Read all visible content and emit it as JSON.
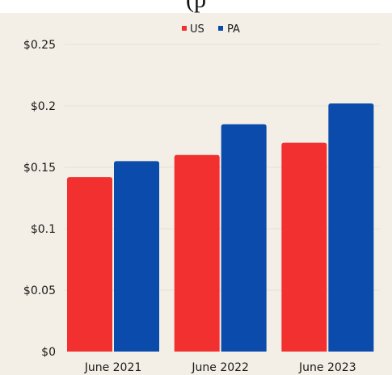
{
  "title_fragment": "(p",
  "colors": {
    "background": "#f3efe6",
    "US": "#f23030",
    "PA": "#0a4bab",
    "grid": "#e7e2d8"
  },
  "chart_data": {
    "type": "bar",
    "title": "",
    "xlabel": "",
    "ylabel": "",
    "categories": [
      "June 2021",
      "June 2022",
      "June 2023"
    ],
    "series": [
      {
        "name": "US",
        "values": [
          0.142,
          0.16,
          0.17
        ]
      },
      {
        "name": "PA",
        "values": [
          0.155,
          0.185,
          0.202
        ]
      }
    ],
    "ylim": [
      0,
      0.25
    ],
    "yticks": [
      0,
      0.05,
      0.1,
      0.15,
      0.2,
      0.25
    ],
    "ytick_labels": [
      "$0",
      "$0.05",
      "$0.1",
      "$0.15",
      "$0.2",
      "$0.25"
    ],
    "legend_position": "top-center",
    "grid": true
  }
}
